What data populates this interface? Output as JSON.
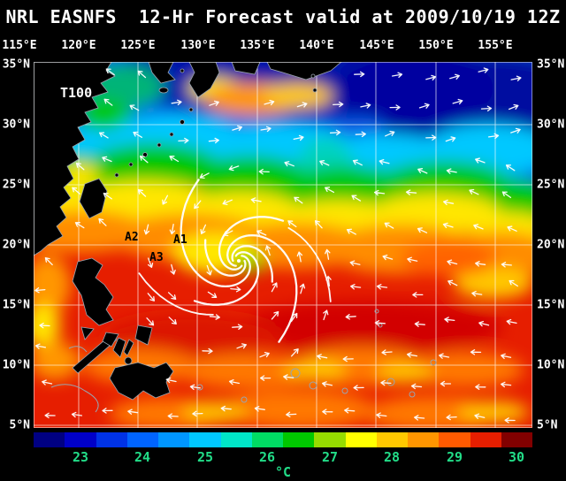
{
  "title": "NRL EASNFS  12-Hr Forecast valid at 2009/10/19 12Z",
  "axes": {
    "lon_ticks": [
      "115°E",
      "120°E",
      "125°E",
      "130°E",
      "135°E",
      "140°E",
      "145°E",
      "150°E",
      "155°E"
    ],
    "lat_ticks": [
      "35°N",
      "30°N",
      "25°N",
      "20°N",
      "15°N",
      "10°N",
      "5°N"
    ]
  },
  "map": {
    "model_label": "T100",
    "annotations": [
      {
        "label": "A2"
      },
      {
        "label": "A1"
      },
      {
        "label": "A3"
      }
    ]
  },
  "colorbar": {
    "unit": "°C",
    "tick_labels": [
      "23",
      "24",
      "25",
      "26",
      "27",
      "28",
      "29",
      "30"
    ],
    "colors": [
      "#000082",
      "#0000c8",
      "#0032e6",
      "#0064ff",
      "#0096ff",
      "#00c8ff",
      "#00e6c8",
      "#00dc64",
      "#00c800",
      "#96dc00",
      "#ffff00",
      "#ffc800",
      "#ff9600",
      "#ff5a00",
      "#e61e00",
      "#820000"
    ]
  },
  "chart_data": {
    "type": "heatmap",
    "title": "NRL EASNFS  12-Hr Forecast valid at 2009/10/19 12Z",
    "region": {
      "lon_min": "115°E",
      "lon_max": "155°E",
      "lat_min": "5°N",
      "lat_max": "35°N"
    },
    "colorbar": {
      "unit": "°C",
      "ticks": [
        23,
        24,
        25,
        26,
        27,
        28,
        29,
        30
      ],
      "range": [
        22.5,
        30.5
      ],
      "palette": [
        "#000082",
        "#0000c8",
        "#0032e6",
        "#0064ff",
        "#0096ff",
        "#00c8ff",
        "#00e6c8",
        "#00dc64",
        "#00c800",
        "#96dc00",
        "#ffff00",
        "#ffc800",
        "#ff9600",
        "#ff5a00",
        "#e61e00",
        "#820000"
      ]
    },
    "annotations": [
      "T100",
      "A2",
      "A1",
      "A3"
    ],
    "features": [
      "tropical cyclone spiral of white streamlines centered near 133.5°E 19°N",
      "white wind vectors over whole domain",
      "warm water 28-30°C south of about 25°N",
      "cold water 23-25°C in the northeast with sharp front along ~27-30°N",
      "black land masses: China coast, Taiwan, Philippines, Japan"
    ]
  }
}
